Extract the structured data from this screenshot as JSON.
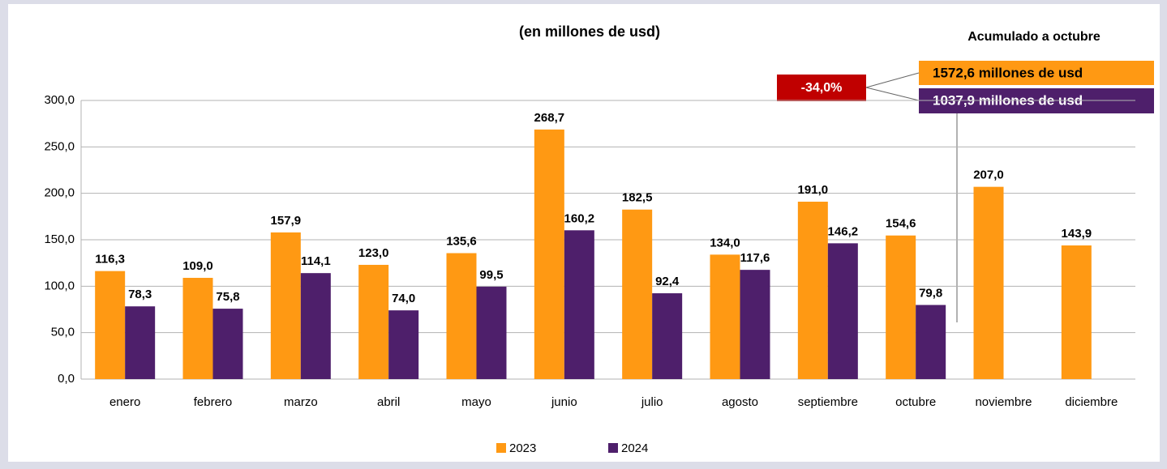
{
  "chart_data": {
    "type": "bar",
    "title": "(en millones de usd)",
    "categories": [
      "enero",
      "febrero",
      "marzo",
      "abril",
      "mayo",
      "junio",
      "julio",
      "agosto",
      "septiembre",
      "octubre",
      "noviembre",
      "diciembre"
    ],
    "series": [
      {
        "name": "2023",
        "color": "#ff9913",
        "values": [
          116.3,
          109.0,
          157.9,
          123.0,
          135.6,
          268.7,
          182.5,
          134.0,
          191.0,
          154.6,
          207.0,
          143.9
        ],
        "value_labels": [
          "116,3",
          "109,0",
          "157,9",
          "123,0",
          "135,6",
          "268,7",
          "182,5",
          "134,0",
          "191,0",
          "154,6",
          "207,0",
          "143,9"
        ]
      },
      {
        "name": "2024",
        "color": "#4e1f6b",
        "values": [
          78.3,
          75.8,
          114.1,
          74.0,
          99.5,
          160.2,
          92.4,
          117.6,
          146.2,
          79.8,
          null,
          null
        ],
        "value_labels": [
          "78,3",
          "75,8",
          "114,1",
          "74,0",
          "99,5",
          "160,2",
          "92,4",
          "117,6",
          "146,2",
          "79,8",
          null,
          null
        ]
      }
    ],
    "ylim": [
      0,
      300
    ],
    "yticks": [
      {
        "value": 0,
        "label": "0,0"
      },
      {
        "value": 50,
        "label": "50,0"
      },
      {
        "value": 100,
        "label": "100,0"
      },
      {
        "value": 150,
        "label": "150,0"
      },
      {
        "value": 200,
        "label": "200,0"
      },
      {
        "value": 250,
        "label": "250,0"
      },
      {
        "value": 300,
        "label": "300,0"
      }
    ],
    "grid": true,
    "annotations": {
      "heading": "Acumulado a octubre",
      "total_2023": "1572,6 millones de usd",
      "total_2024": "1037,9 millones de usd",
      "change": "-34,0%"
    }
  }
}
